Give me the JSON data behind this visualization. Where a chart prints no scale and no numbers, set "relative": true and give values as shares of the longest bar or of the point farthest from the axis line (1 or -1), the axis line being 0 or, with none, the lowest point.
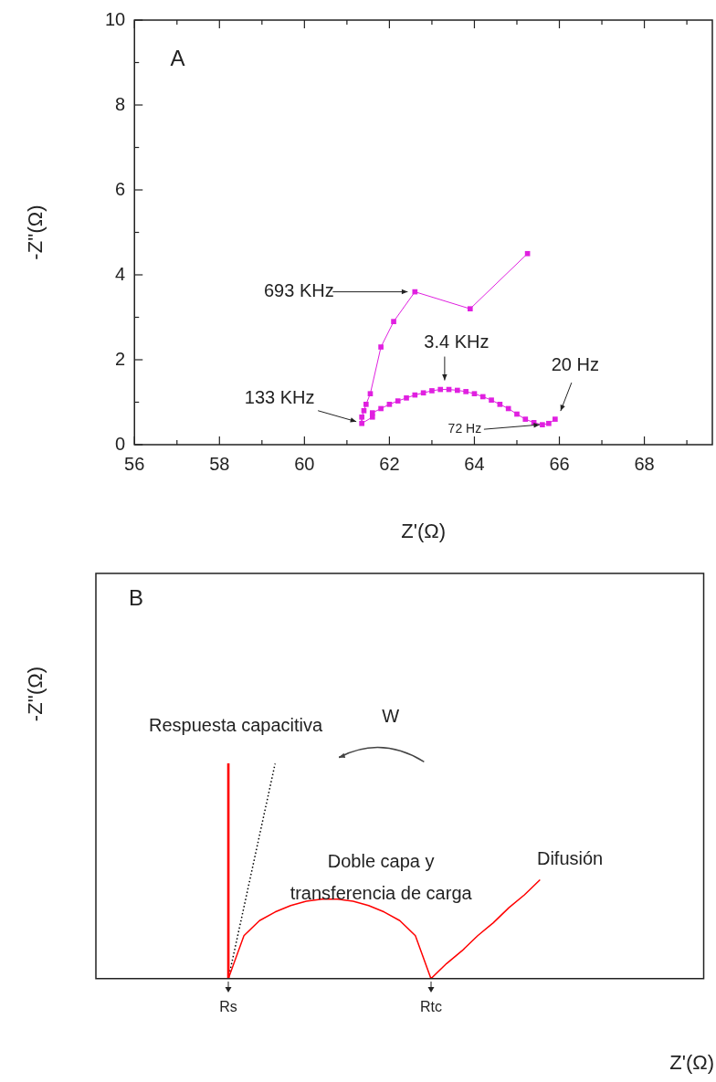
{
  "chart_data": [
    {
      "type": "line",
      "title": "A",
      "xlabel": "Z'(Ω)",
      "ylabel": "-Z''(Ω)",
      "xlim": [
        56,
        69.6
      ],
      "xticks": [
        56,
        {
          "value": 57,
          "label": null
        },
        58,
        {
          "value": 59,
          "label": null
        },
        60,
        {
          "value": 61,
          "label": null
        },
        62,
        {
          "value": 63,
          "label": null
        },
        64,
        {
          "value": 65,
          "label": null
        },
        66,
        {
          "value": 67,
          "label": null
        },
        68,
        {
          "value": 69,
          "label": null
        }
      ],
      "ylim": [
        0,
        10
      ],
      "yticks": [
        0,
        {
          "value": 1,
          "label": null
        },
        2,
        {
          "value": 3,
          "label": null
        },
        4,
        {
          "value": 5,
          "label": null
        },
        6,
        {
          "value": 7,
          "label": null
        },
        8,
        {
          "value": 9,
          "label": null
        },
        10
      ],
      "marker": "square",
      "series": [
        {
          "color": "#e020e0",
          "x": [
            65.25,
            63.9,
            62.6,
            62.1,
            61.8,
            61.55,
            61.45,
            61.4,
            61.35,
            61.35,
            61.6,
            61.6,
            61.8,
            62,
            62.2,
            62.4,
            62.6,
            62.8,
            63,
            63.2,
            63.4,
            63.6,
            63.8,
            64,
            64.2,
            64.4,
            64.6,
            64.8,
            65,
            65.2,
            65.4,
            65.6,
            65.75,
            65.9
          ],
          "values": [
            4.5,
            3.2,
            3.6,
            2.9,
            2.3,
            1.2,
            0.95,
            0.8,
            0.65,
            0.5,
            0.65,
            0.75,
            0.85,
            0.95,
            1.03,
            1.1,
            1.17,
            1.22,
            1.27,
            1.3,
            1.3,
            1.28,
            1.25,
            1.2,
            1.13,
            1.05,
            0.95,
            0.85,
            0.72,
            0.6,
            0.52,
            0.47,
            0.5,
            0.6
          ]
        }
      ],
      "annotations": [
        {
          "text": "693 KHz",
          "x": 62.6,
          "y": 3.6
        },
        {
          "text": "133 KHz",
          "x": 61.35,
          "y": 0.5
        },
        {
          "text": "3.4 KHz",
          "x": 63.3,
          "y": 1.3
        },
        {
          "text": "20 Hz",
          "x": 65.9,
          "y": 0.6
        },
        {
          "text": "72 Hz",
          "x": 65.6,
          "y": 0.47
        }
      ]
    },
    {
      "type": "line",
      "title": "B",
      "xlabel": "Z'(Ω)",
      "ylabel": "-Z''(Ω)",
      "relative": true,
      "tick_labels": "x",
      "marker": "none",
      "categories": [
        null,
        null,
        null,
        null,
        null,
        null,
        null,
        null,
        "Rs",
        null,
        null,
        null,
        null,
        null,
        null,
        null,
        null,
        null,
        null,
        null,
        null,
        "Rtc",
        null,
        null,
        null,
        null,
        null,
        null,
        null,
        null,
        null,
        null,
        null,
        null,
        null,
        null,
        null,
        null,
        null
      ],
      "series": [
        {
          "color": "#ff0000",
          "values": [
            null,
            null,
            null,
            null,
            null,
            null,
            null,
            null,
            0,
            0.2,
            0.27,
            0.31,
            0.34,
            0.36,
            0.37,
            0.37,
            0.36,
            0.34,
            0.31,
            0.27,
            0.2,
            0,
            0.07,
            0.13,
            0.2,
            0.26,
            0.33,
            0.39,
            0.46,
            null,
            null,
            null,
            null,
            null,
            null,
            null,
            null,
            null,
            null
          ],
          "type": "line"
        },
        {
          "type": "bar",
          "color": "#ff0000",
          "values": [
            null,
            null,
            null,
            null,
            null,
            null,
            null,
            null,
            1,
            null,
            null,
            null,
            null,
            null,
            null,
            null,
            null,
            null,
            null,
            null,
            null,
            null,
            null,
            null,
            null,
            null,
            null,
            null,
            null,
            null,
            null,
            null,
            null,
            null,
            null,
            null,
            null,
            null,
            null
          ]
        },
        {
          "color": "#000000",
          "line_style": "dotted",
          "values": [
            null,
            null,
            null,
            null,
            null,
            null,
            null,
            null,
            0,
            0.333,
            0.667,
            1,
            null,
            null,
            null,
            null,
            null,
            null,
            null,
            null,
            null,
            null,
            null,
            null,
            null,
            null,
            null,
            null,
            null,
            null,
            null,
            null,
            null,
            null,
            null,
            null,
            null,
            null,
            null
          ]
        }
      ],
      "annotations": [
        "Respuesta capacitiva",
        "W",
        "Doble capa y\ntransferencia de carga",
        "Difusión"
      ]
    }
  ]
}
